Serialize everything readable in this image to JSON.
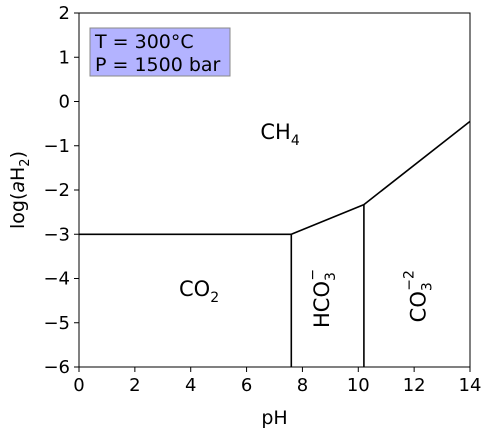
{
  "chart_data": {
    "type": "line",
    "xlabel": "pH",
    "xlim": [
      0,
      14
    ],
    "ylim": [
      -6,
      2
    ],
    "xticks": [
      0,
      2,
      4,
      6,
      8,
      10,
      12,
      14
    ],
    "yticks": [
      2,
      1,
      0,
      -1,
      -2,
      -3,
      -4,
      -5,
      -6
    ],
    "yticklabels": [
      "2",
      "1",
      "0",
      "−1",
      "−2",
      "−3",
      "−4",
      "−5",
      "−6"
    ],
    "ylabel": {
      "pre": "log(",
      "italic": "a",
      "main": "H",
      "sub": "2",
      "post": ")"
    },
    "annotation": {
      "lines": [
        "T = 300°C",
        "P = 1500 bar"
      ],
      "background": "#b3b3ff",
      "border": "#888888"
    },
    "boundaries": [
      {
        "name": "CO2/CH4",
        "x": [
          0,
          7.6
        ],
        "y": [
          -3.0,
          -3.0
        ]
      },
      {
        "name": "CO2/HCO3-",
        "x": [
          7.6,
          7.6
        ],
        "y": [
          -3.0,
          -6.0
        ]
      },
      {
        "name": "HCO3-/CH4",
        "x": [
          7.6,
          10.2
        ],
        "y": [
          -3.0,
          -2.33
        ]
      },
      {
        "name": "HCO3-/CO3-2",
        "x": [
          10.2,
          10.2
        ],
        "y": [
          -2.33,
          -6.0
        ]
      },
      {
        "name": "CO3-2/CH4",
        "x": [
          10.2,
          14.0
        ],
        "y": [
          -2.33,
          -0.45
        ]
      }
    ],
    "regions": [
      {
        "main": "CH",
        "sub": "4",
        "sup": "",
        "x": 7.2,
        "y": -0.85,
        "rotate": false
      },
      {
        "main": "CO",
        "sub": "2",
        "sup": "",
        "x": 4.3,
        "y": -4.4,
        "rotate": false
      },
      {
        "main": "HCO",
        "sub": "3",
        "sup": "−",
        "x": 8.95,
        "y": -4.45,
        "rotate": true
      },
      {
        "main": "CO",
        "sub": "3",
        "sup": "−2",
        "x": 12.4,
        "y": -4.4,
        "rotate": true
      }
    ],
    "line_color": "#000000",
    "grid": false
  }
}
